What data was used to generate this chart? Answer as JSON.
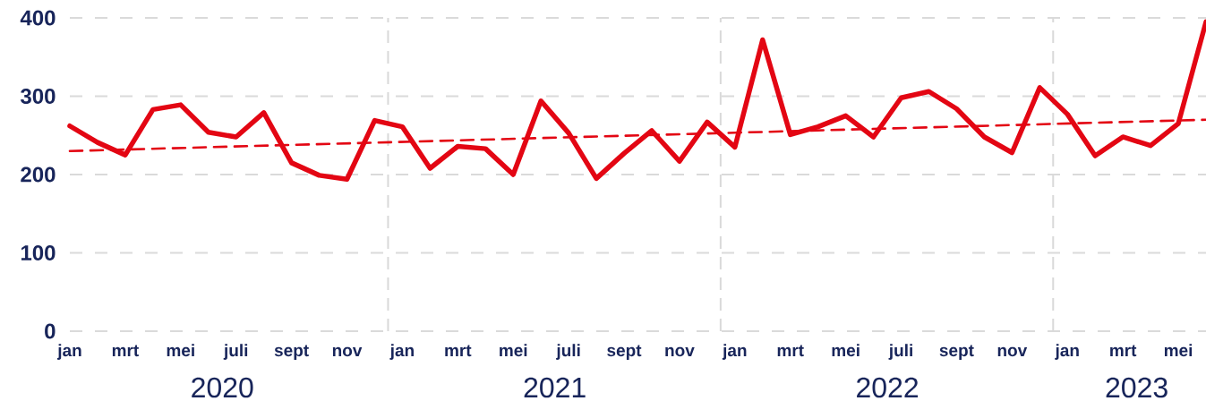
{
  "chart_data": {
    "type": "line",
    "x": [
      "2020-01",
      "2020-02",
      "2020-03",
      "2020-04",
      "2020-05",
      "2020-06",
      "2020-07",
      "2020-08",
      "2020-09",
      "2020-10",
      "2020-11",
      "2020-12",
      "2021-01",
      "2021-02",
      "2021-03",
      "2021-04",
      "2021-05",
      "2021-06",
      "2021-07",
      "2021-08",
      "2021-09",
      "2021-10",
      "2021-11",
      "2021-12",
      "2022-01",
      "2022-02",
      "2022-03",
      "2022-04",
      "2022-05",
      "2022-06",
      "2022-07",
      "2022-08",
      "2022-09",
      "2022-10",
      "2022-11",
      "2022-12",
      "2023-01",
      "2023-02",
      "2023-03",
      "2023-04",
      "2023-05",
      "2023-06"
    ],
    "series": [
      {
        "color": "#e30613",
        "values": [
          262,
          241,
          225,
          283,
          289,
          254,
          248,
          279,
          215,
          199,
          194,
          269,
          261,
          208,
          236,
          233,
          200,
          294,
          253,
          195,
          227,
          256,
          217,
          267,
          235,
          372,
          251,
          261,
          275,
          248,
          298,
          306,
          284,
          248,
          228,
          311,
          277,
          224,
          248,
          237,
          265,
          395
        ]
      },
      {
        "color": "#e30613",
        "line_style": "dashed",
        "x": [
          "2020-01",
          "2023-06"
        ],
        "values": [
          230,
          270
        ]
      }
    ],
    "xlim": [
      "2020-01",
      "2023-06"
    ],
    "xticks": [
      {
        "value": "2020-01",
        "label": "jan"
      },
      {
        "value": "2020-03",
        "label": "mrt"
      },
      {
        "value": "2020-05",
        "label": "mei"
      },
      {
        "value": "2020-07",
        "label": "juli"
      },
      {
        "value": "2020-09",
        "label": "sept"
      },
      {
        "value": "2020-11",
        "label": "nov"
      },
      {
        "value": "2021-01",
        "label": "jan"
      },
      {
        "value": "2021-03",
        "label": "mrt"
      },
      {
        "value": "2021-05",
        "label": "mei"
      },
      {
        "value": "2021-07",
        "label": "juli"
      },
      {
        "value": "2021-09",
        "label": "sept"
      },
      {
        "value": "2021-11",
        "label": "nov"
      },
      {
        "value": "2022-01",
        "label": "jan"
      },
      {
        "value": "2022-03",
        "label": "mrt"
      },
      {
        "value": "2022-05",
        "label": "mei"
      },
      {
        "value": "2022-07",
        "label": "juli"
      },
      {
        "value": "2022-09",
        "label": "sept"
      },
      {
        "value": "2022-11",
        "label": "nov"
      },
      {
        "value": "2023-01",
        "label": "jan"
      },
      {
        "value": "2023-03",
        "label": "mrt"
      },
      {
        "value": "2023-05",
        "label": "mei"
      }
    ],
    "ylim": [
      0,
      400
    ],
    "yticks": [
      0,
      100,
      200,
      300,
      400
    ],
    "grid": "y",
    "line_style": "solid",
    "ref_lines": [
      {
        "axis": "x",
        "value": "2020-12-16",
        "color": "#d9d9d9",
        "line_style": "dashed"
      },
      {
        "axis": "x",
        "value": "2021-12-16",
        "color": "#d9d9d9",
        "line_style": "dashed"
      },
      {
        "axis": "x",
        "value": "2022-12-16",
        "color": "#d9d9d9",
        "line_style": "dashed"
      }
    ],
    "annotations": [
      "2020",
      "2021",
      "2022",
      "2023"
    ]
  }
}
